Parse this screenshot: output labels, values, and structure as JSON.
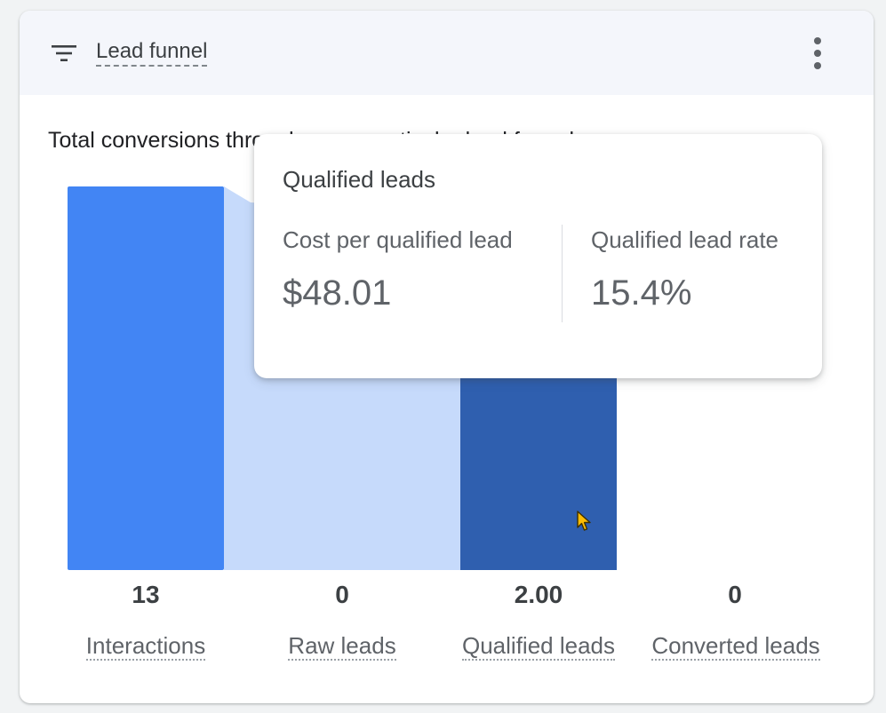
{
  "header": {
    "title": "Lead funnel"
  },
  "chart_title": "Total conversions through every particular lead funnel",
  "icons": {
    "filter": "filter-list-icon",
    "more": "more-vert-icon",
    "cursor": "mouse-pointer-icon"
  },
  "colors": {
    "interactions_bar": "#4285f4",
    "raw_leads_bar": "#c6dafb",
    "qualified_leads_bar": "#2f5faf",
    "header_bg": "#f4f6fb"
  },
  "chart_data": {
    "type": "bar",
    "categories": [
      "Interactions",
      "Raw leads",
      "Qualified leads",
      "Converted leads"
    ],
    "values": [
      13,
      0,
      2.0,
      0
    ],
    "value_labels": [
      "13",
      "0",
      "2.00",
      "0"
    ]
  },
  "tooltip": {
    "title": "Qualified leads",
    "metrics": [
      {
        "label": "Cost per qualified lead",
        "value": "$48.01"
      },
      {
        "label": "Qualified lead rate",
        "value": "15.4%"
      }
    ]
  }
}
